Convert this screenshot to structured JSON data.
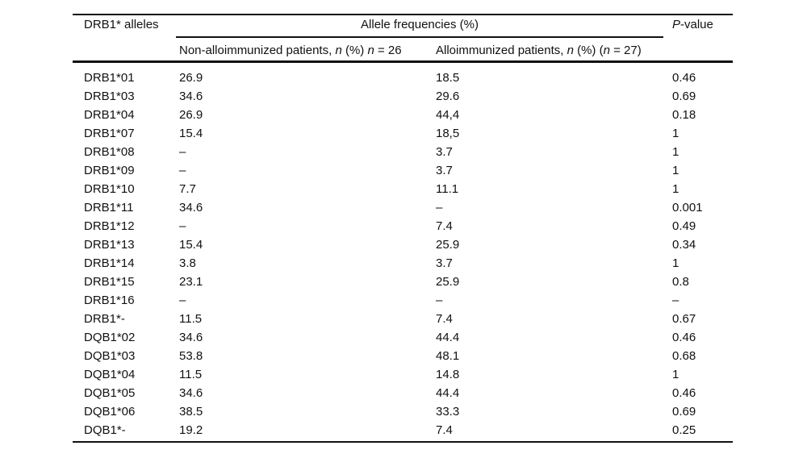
{
  "table": {
    "col1_header": "DRB1* alleles",
    "spanner_header": "Allele frequencies (%)",
    "pvalue_header": {
      "segments": [
        {
          "text": "P",
          "italic": true
        },
        {
          "text": "-value",
          "italic": false
        }
      ]
    },
    "subheaders": {
      "non_allo": {
        "segments": [
          {
            "text": "Non-alloimmunized patients, ",
            "italic": false
          },
          {
            "text": "n",
            "italic": true
          },
          {
            "text": " (%) ",
            "italic": false
          },
          {
            "text": "n",
            "italic": true
          },
          {
            "text": " = 26",
            "italic": false
          }
        ]
      },
      "allo": {
        "segments": [
          {
            "text": "Alloimmunized patients, ",
            "italic": false
          },
          {
            "text": "n",
            "italic": true
          },
          {
            "text": " (%) (",
            "italic": false
          },
          {
            "text": "n",
            "italic": true
          },
          {
            "text": " = 27)",
            "italic": false
          }
        ]
      }
    },
    "rows": [
      {
        "allele": "DRB1*01",
        "non_allo": "26.9",
        "allo": "18.5",
        "p": "0.46"
      },
      {
        "allele": "DRB1*03",
        "non_allo": "34.6",
        "allo": "29.6",
        "p": "0.69"
      },
      {
        "allele": "DRB1*04",
        "non_allo": "26.9",
        "allo": "44,4",
        "p": "0.18"
      },
      {
        "allele": "DRB1*07",
        "non_allo": "15.4",
        "allo": "18,5",
        "p": "1"
      },
      {
        "allele": "DRB1*08",
        "non_allo": "–",
        "allo": "3.7",
        "p": "1"
      },
      {
        "allele": "DRB1*09",
        "non_allo": "–",
        "allo": "3.7",
        "p": "1"
      },
      {
        "allele": "DRB1*10",
        "non_allo": "7.7",
        "allo": "11.1",
        "p": "1"
      },
      {
        "allele": "DRB1*11",
        "non_allo": "34.6",
        "allo": "–",
        "p": "0.001"
      },
      {
        "allele": "DRB1*12",
        "non_allo": "–",
        "allo": "7.4",
        "p": "0.49"
      },
      {
        "allele": "DRB1*13",
        "non_allo": "15.4",
        "allo": "25.9",
        "p": "0.34"
      },
      {
        "allele": "DRB1*14",
        "non_allo": "3.8",
        "allo": "3.7",
        "p": "1"
      },
      {
        "allele": "DRB1*15",
        "non_allo": "23.1",
        "allo": "25.9",
        "p": "0.8"
      },
      {
        "allele": "DRB1*16",
        "non_allo": "–",
        "allo": "–",
        "p": "–"
      },
      {
        "allele": "DRB1*-",
        "non_allo": "11.5",
        "allo": "7.4",
        "p": "0.67"
      },
      {
        "allele": "DQB1*02",
        "non_allo": "34.6",
        "allo": "44.4",
        "p": "0.46"
      },
      {
        "allele": "DQB1*03",
        "non_allo": "53.8",
        "allo": "48.1",
        "p": "0.68"
      },
      {
        "allele": "DQB1*04",
        "non_allo": "11.5",
        "allo": "14.8",
        "p": "1"
      },
      {
        "allele": "DQB1*05",
        "non_allo": "34.6",
        "allo": "44.4",
        "p": "0.46"
      },
      {
        "allele": "DQB1*06",
        "non_allo": "38.5",
        "allo": "33.3",
        "p": "0.69"
      },
      {
        "allele": "DQB1*-",
        "non_allo": "19.2",
        "allo": "7.4",
        "p": "0.25"
      }
    ]
  }
}
